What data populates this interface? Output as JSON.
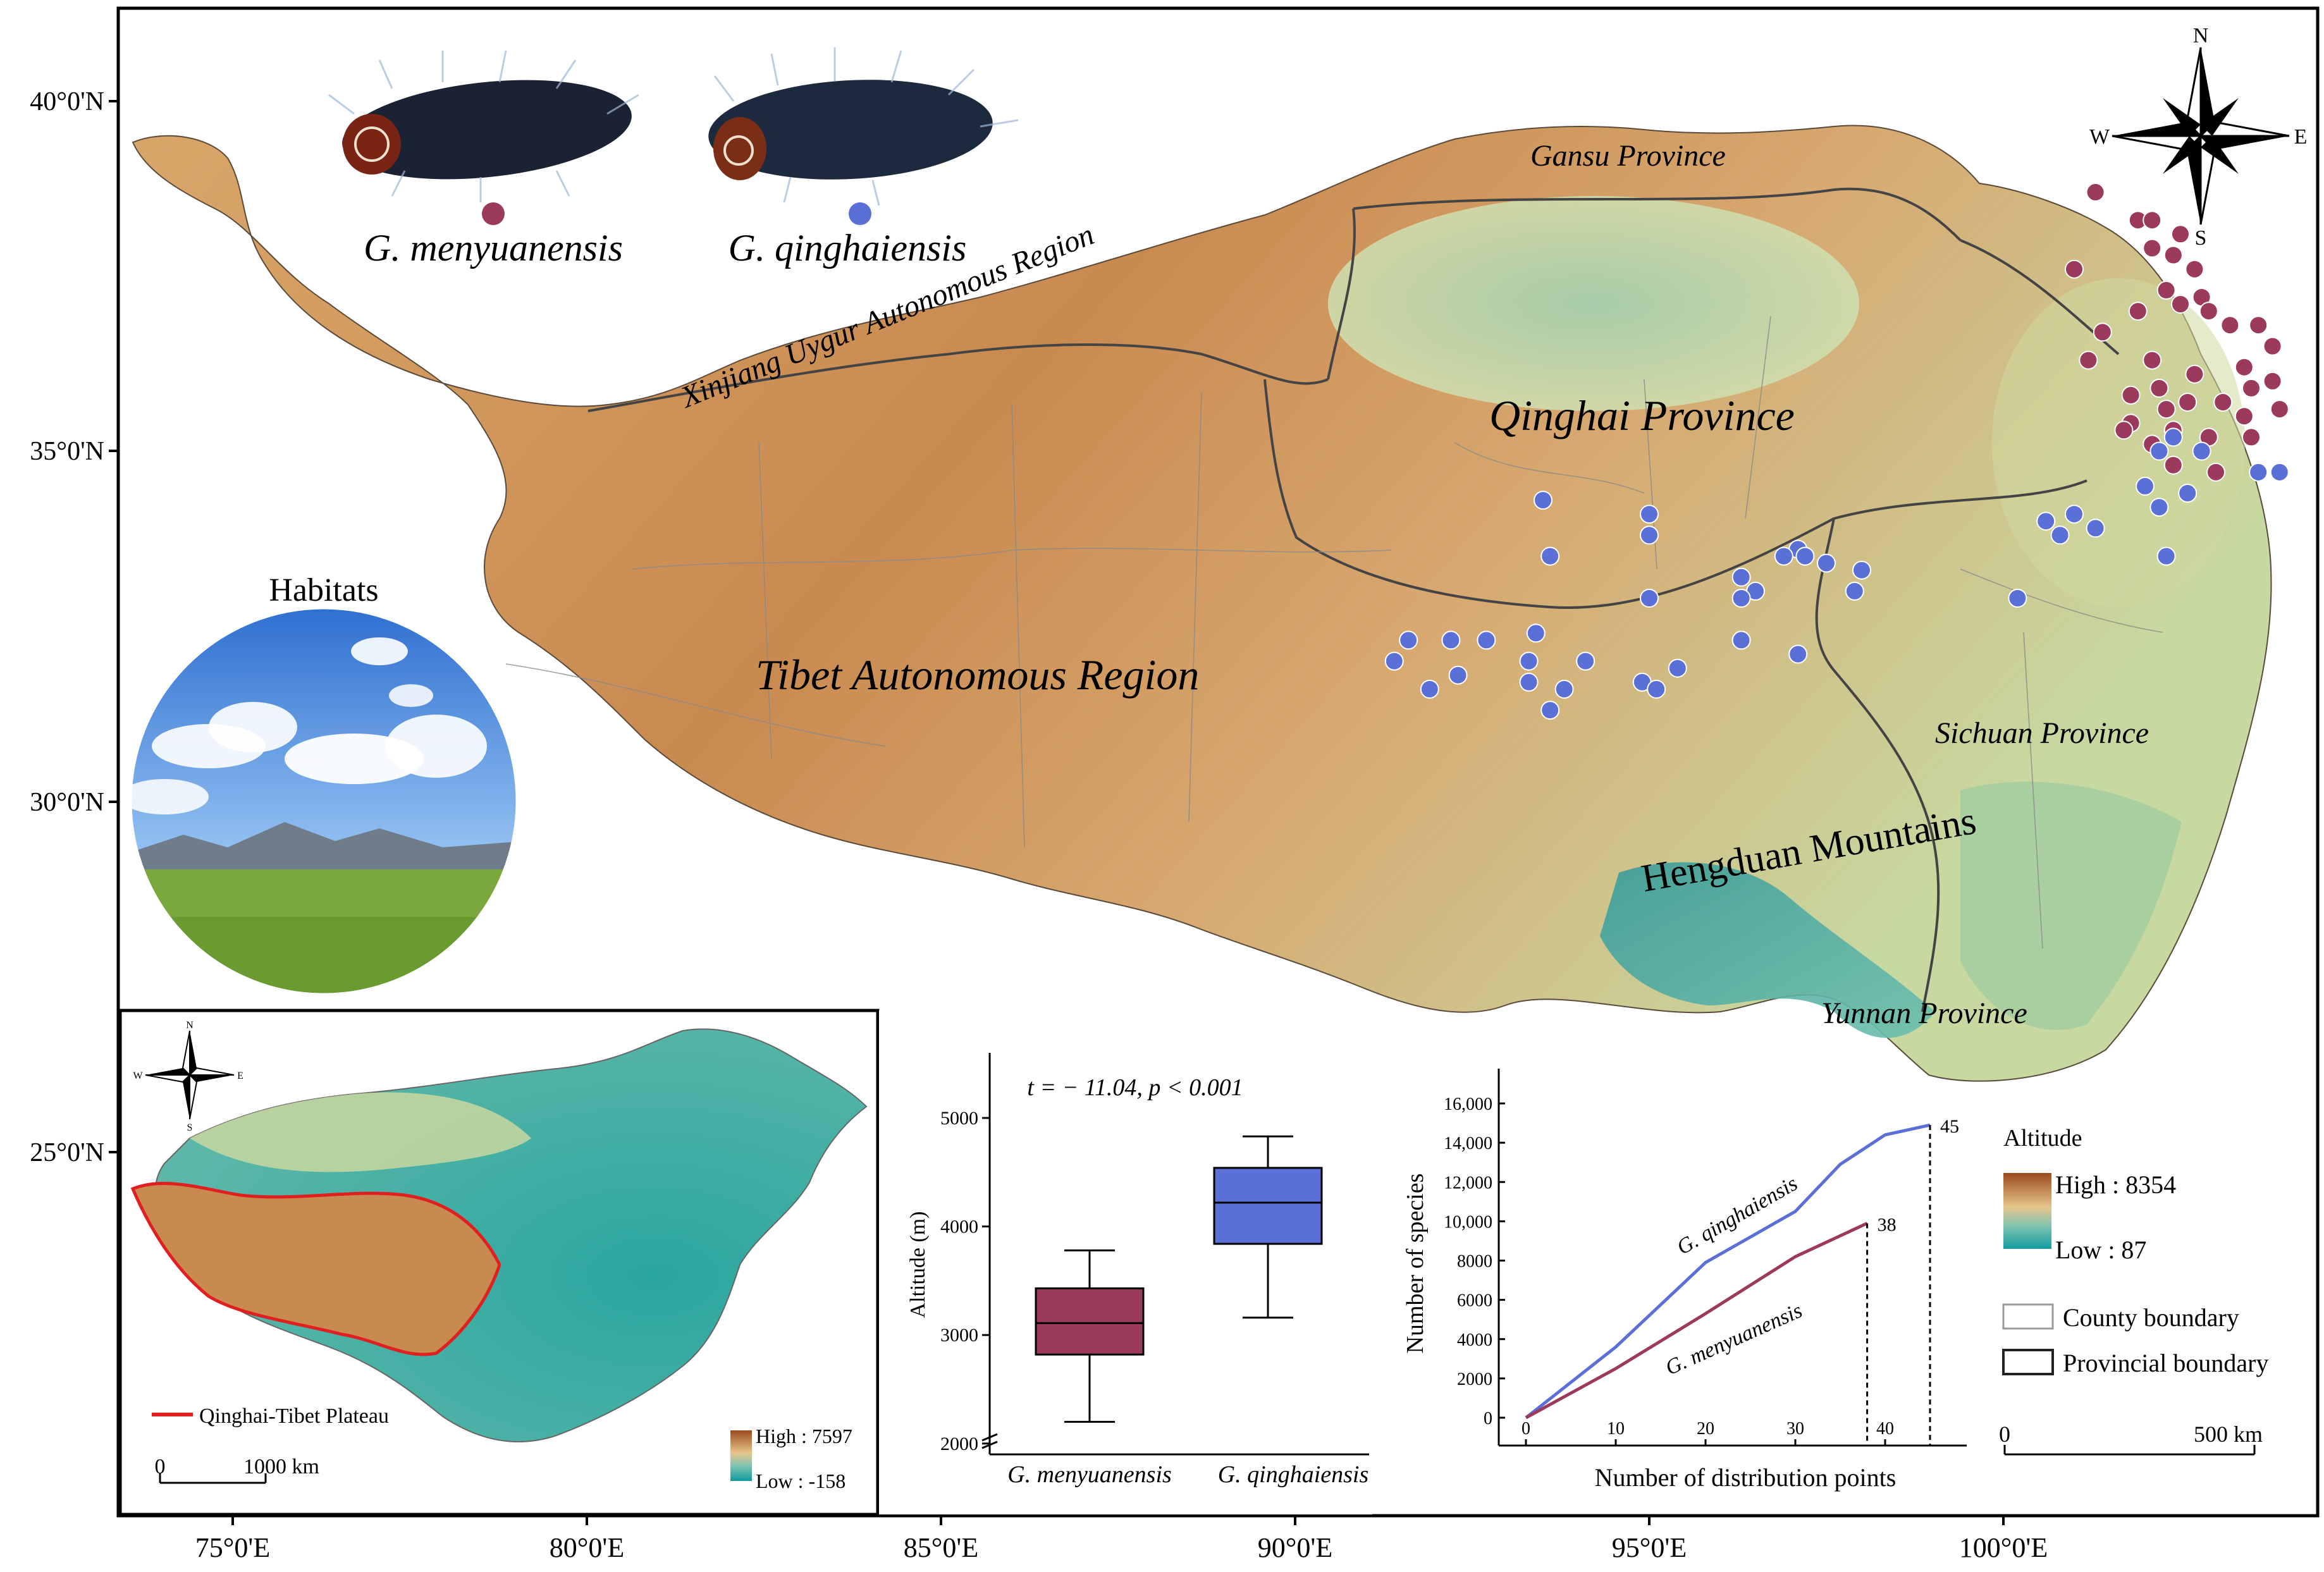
{
  "species": {
    "menyuanensis": {
      "name": "G. menyuanensis",
      "color": "#9b3a5c"
    },
    "qinghaiensis": {
      "name": "G. qinghaiensis",
      "color": "#5b70d6"
    }
  },
  "map": {
    "lat_labels": [
      "40°0'N",
      "35°0'N",
      "30°0'N",
      "25°0'N"
    ],
    "lon_labels": [
      "75°0'E",
      "80°0'E",
      "85°0'E",
      "90°0'E",
      "95°0'E",
      "100°0'E"
    ],
    "regions": {
      "gansu": "Gansu Province",
      "xinjiang": "Xinjiang Uygur Autonomous Region",
      "qinghai": "Qinghai Province",
      "tibet": "Tibet Autonomous Region",
      "sichuan": "Sichuan Province",
      "hengduan": "Hengduan Mountains",
      "yunnan": "Yunnan Province"
    },
    "compass": {
      "n": "N",
      "s": "S",
      "e": "E",
      "w": "W"
    },
    "habitats_label": "Habitats",
    "colors": {
      "high": "#a0522d",
      "mid": "#e8c78a",
      "low": "#0f9ba0",
      "red_boundary": "#e02020",
      "qinghai_tint": "#a8d5b0"
    }
  },
  "points": {
    "menyuanensis": [
      [
        101.3,
        38.7
      ],
      [
        101.9,
        38.3
      ],
      [
        102.1,
        38.3
      ],
      [
        102.5,
        38.1
      ],
      [
        101.0,
        37.6
      ],
      [
        102.1,
        37.9
      ],
      [
        102.4,
        37.8
      ],
      [
        102.7,
        37.6
      ],
      [
        102.3,
        37.3
      ],
      [
        102.8,
        37.2
      ],
      [
        101.9,
        37.0
      ],
      [
        102.5,
        37.1
      ],
      [
        102.9,
        37.0
      ],
      [
        103.2,
        36.8
      ],
      [
        103.6,
        36.8
      ],
      [
        101.4,
        36.7
      ],
      [
        103.8,
        36.5
      ],
      [
        101.2,
        36.3
      ],
      [
        102.1,
        36.3
      ],
      [
        102.7,
        36.1
      ],
      [
        103.4,
        36.2
      ],
      [
        103.5,
        35.9
      ],
      [
        103.8,
        36.0
      ],
      [
        101.8,
        35.8
      ],
      [
        102.2,
        35.9
      ],
      [
        102.6,
        35.7
      ],
      [
        103.1,
        35.7
      ],
      [
        103.4,
        35.5
      ],
      [
        103.9,
        35.6
      ],
      [
        102.3,
        35.6
      ],
      [
        101.8,
        35.4
      ],
      [
        102.4,
        35.3
      ],
      [
        102.9,
        35.2
      ],
      [
        103.5,
        35.2
      ],
      [
        103.0,
        34.7
      ],
      [
        102.1,
        35.1
      ],
      [
        101.7,
        35.3
      ],
      [
        102.4,
        34.8
      ]
    ],
    "qinghaiensis": [
      [
        102.2,
        35.0
      ],
      [
        102.4,
        35.2
      ],
      [
        102.8,
        35.0
      ],
      [
        103.6,
        34.7
      ],
      [
        103.9,
        34.7
      ],
      [
        102.0,
        34.5
      ],
      [
        102.6,
        34.4
      ],
      [
        102.2,
        34.2
      ],
      [
        101.0,
        34.1
      ],
      [
        101.3,
        33.9
      ],
      [
        100.6,
        34.0
      ],
      [
        100.8,
        33.8
      ],
      [
        93.5,
        34.3
      ],
      [
        95.0,
        34.1
      ],
      [
        95.0,
        33.8
      ],
      [
        93.6,
        33.5
      ],
      [
        97.1,
        33.6
      ],
      [
        96.9,
        33.5
      ],
      [
        97.2,
        33.5
      ],
      [
        97.5,
        33.4
      ],
      [
        96.3,
        33.2
      ],
      [
        96.5,
        33.0
      ],
      [
        96.3,
        32.9
      ],
      [
        98.0,
        33.3
      ],
      [
        97.9,
        33.0
      ],
      [
        100.2,
        32.9
      ],
      [
        102.3,
        33.5
      ],
      [
        95.0,
        32.9
      ],
      [
        91.6,
        32.3
      ],
      [
        91.4,
        32.0
      ],
      [
        92.2,
        32.3
      ],
      [
        92.7,
        32.3
      ],
      [
        93.4,
        32.4
      ],
      [
        93.3,
        32.0
      ],
      [
        94.1,
        32.0
      ],
      [
        96.3,
        32.3
      ],
      [
        97.1,
        32.1
      ],
      [
        91.9,
        31.6
      ],
      [
        92.3,
        31.8
      ],
      [
        93.3,
        31.7
      ],
      [
        93.8,
        31.6
      ],
      [
        94.9,
        31.7
      ],
      [
        95.1,
        31.6
      ],
      [
        95.4,
        31.9
      ],
      [
        93.6,
        31.3
      ]
    ]
  },
  "inset_china": {
    "legend_label": "Qinghai-Tibet Plateau",
    "high": "High : 7597",
    "low": "Low : -158",
    "scale_0": "0",
    "scale_1000": "1000  km"
  },
  "boxplot": {
    "annotation": "t = − 11.04, p < 0.001",
    "ylabel": "Altitude (m)",
    "y_ticks": [
      "5000",
      "4000",
      "3000",
      "2000"
    ]
  },
  "curve_chart": {
    "xlabel": "Number of distribution points",
    "ylabel": "Number of species",
    "y_ticks": [
      "16,000",
      "14,000",
      "12,000",
      "10,000",
      "8000",
      "6000",
      "4000",
      "2000",
      "0"
    ],
    "x_ticks": [
      "0",
      "10",
      "20",
      "30",
      "40"
    ],
    "end_label_q": "45",
    "end_label_m": "38"
  },
  "legend": {
    "title": "Altitude",
    "high": "High : 8354",
    "low": "Low : 87",
    "county": "County boundary",
    "province": "Provincial boundary",
    "scale_0": "0",
    "scale_500": "500 km"
  },
  "chart_data": [
    {
      "type": "box",
      "title": "",
      "annotation": "t = − 11.04, p < 0.001",
      "ylabel": "Altitude (m)",
      "ylim": [
        1900,
        5600
      ],
      "categories": [
        "G. menyuanensis",
        "G. qinghaiensis"
      ],
      "series": [
        {
          "name": "G. menyuanensis",
          "whisker_low": 2200,
          "q1": 2820,
          "median": 3110,
          "q3": 3430,
          "whisker_high": 3780
        },
        {
          "name": "G. qinghaiensis",
          "whisker_low": 3160,
          "q1": 3840,
          "median": 4220,
          "q3": 4540,
          "whisker_high": 4830
        }
      ]
    },
    {
      "type": "line",
      "title": "",
      "xlabel": "Number of distribution points",
      "ylabel": "Number of species",
      "xlim": [
        0,
        48
      ],
      "ylim": [
        0,
        16000
      ],
      "series": [
        {
          "name": "G. qinghaiensis",
          "x": [
            0,
            10,
            20,
            30,
            35,
            40,
            45
          ],
          "y": [
            0,
            3600,
            7900,
            10500,
            12900,
            14400,
            14900
          ],
          "end_label": "45"
        },
        {
          "name": "G. menyuanensis",
          "x": [
            0,
            10,
            20,
            30,
            38
          ],
          "y": [
            0,
            2500,
            5300,
            8200,
            9900
          ],
          "end_label": "38"
        }
      ]
    }
  ]
}
